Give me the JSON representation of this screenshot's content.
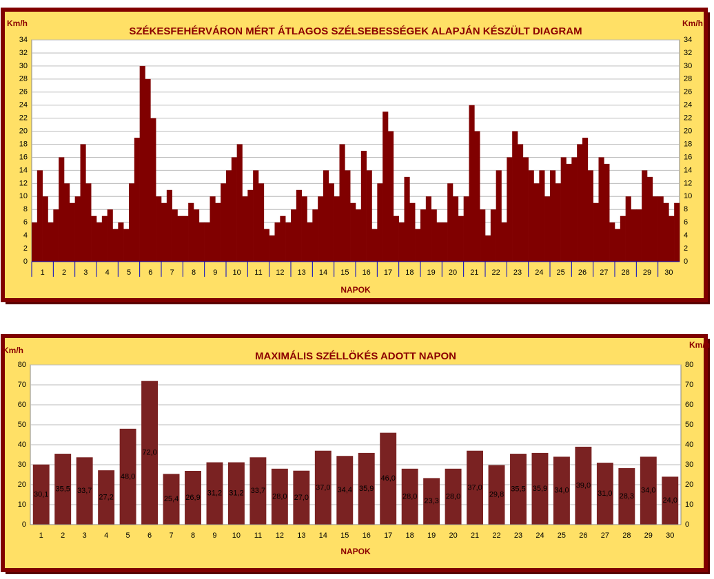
{
  "chart_data": [
    {
      "type": "bar",
      "title": "SZÉKESFEHÉRVÁRON MÉRT ÁTLAGOS SZÉLSEBESSÉGEK ALAPJÁN KÉSZÜLT DIAGRAM",
      "ylabel": "Km/h",
      "xlabel": "NAPOK",
      "color": "#800000",
      "grid": true,
      "ylim": [
        0,
        34
      ],
      "yticks": [
        0,
        2,
        4,
        6,
        8,
        10,
        12,
        14,
        16,
        18,
        20,
        22,
        24,
        26,
        28,
        30,
        32,
        34
      ],
      "categories": [
        "1",
        "2",
        "3",
        "4",
        "5",
        "6",
        "7",
        "8",
        "9",
        "10",
        "11",
        "12",
        "13",
        "14",
        "15",
        "16",
        "17",
        "18",
        "19",
        "20",
        "21",
        "22",
        "23",
        "24",
        "25",
        "26",
        "27",
        "28",
        "29",
        "30"
      ],
      "values": [
        [
          6,
          14,
          10,
          6
        ],
        [
          8,
          16,
          12,
          9
        ],
        [
          10,
          18,
          12,
          7
        ],
        [
          6,
          7,
          8,
          5
        ],
        [
          6,
          5,
          12,
          19
        ],
        [
          30,
          28,
          22,
          10
        ],
        [
          9,
          11,
          8,
          7
        ],
        [
          7,
          9,
          8,
          6
        ],
        [
          6,
          10,
          9,
          12
        ],
        [
          14,
          16,
          18,
          10
        ],
        [
          11,
          14,
          12,
          5
        ],
        [
          4,
          6,
          7,
          6
        ],
        [
          8,
          11,
          10,
          6
        ],
        [
          8,
          10,
          14,
          12
        ],
        [
          10,
          18,
          14,
          9
        ],
        [
          8,
          17,
          14,
          5
        ],
        [
          12,
          23,
          20,
          7
        ],
        [
          6,
          13,
          9,
          5
        ],
        [
          8,
          10,
          8,
          6
        ],
        [
          6,
          12,
          10,
          7
        ],
        [
          10,
          24,
          20,
          8
        ],
        [
          4,
          8,
          14,
          6
        ],
        [
          16,
          20,
          18,
          16
        ],
        [
          14,
          12,
          14,
          10
        ],
        [
          14,
          12,
          16,
          15
        ],
        [
          16,
          18,
          19,
          14
        ],
        [
          9,
          16,
          15,
          6
        ],
        [
          5,
          7,
          10,
          8
        ],
        [
          8,
          14,
          13,
          10
        ],
        [
          10,
          9,
          7,
          9
        ]
      ]
    },
    {
      "type": "bar",
      "title": "MAXIMÁLIS SZÉLLÖKÉS ADOTT NAPON",
      "ylabel": "Km/h",
      "xlabel": "NAPOK",
      "color": "#7a2222",
      "label_color": "#ffff00",
      "grid": true,
      "ylim": [
        0,
        80
      ],
      "yticks": [
        0,
        10,
        20,
        30,
        40,
        50,
        60,
        70,
        80
      ],
      "categories": [
        "1",
        "2",
        "3",
        "4",
        "5",
        "6",
        "7",
        "8",
        "9",
        "10",
        "11",
        "12",
        "13",
        "14",
        "15",
        "16",
        "17",
        "18",
        "19",
        "20",
        "21",
        "22",
        "23",
        "24",
        "25",
        "26",
        "27",
        "28",
        "29",
        "30"
      ],
      "values": [
        30.1,
        35.5,
        33.7,
        27.2,
        48.0,
        72.0,
        25.4,
        26.9,
        31.2,
        31.2,
        33.7,
        28.0,
        27.0,
        37.0,
        34.4,
        35.9,
        46.0,
        28.0,
        23.3,
        28.0,
        37.0,
        29.8,
        35.5,
        35.9,
        34.0,
        39.0,
        31.0,
        28.3,
        34.0,
        24.0
      ],
      "value_labels": [
        "30,1",
        "35,5",
        "33,7",
        "27,2",
        "48,0",
        "72,0",
        "25,4",
        "26,9",
        "31,2",
        "31,2",
        "33,7",
        "28,0",
        "27,0",
        "37,0",
        "34,4",
        "35,9",
        "46,0",
        "28,0",
        "23,3",
        "28,0",
        "37,0",
        "29,8",
        "35,5",
        "35,9",
        "34,0",
        "39,0",
        "31,0",
        "28,3",
        "34,0",
        "24,0"
      ]
    }
  ]
}
